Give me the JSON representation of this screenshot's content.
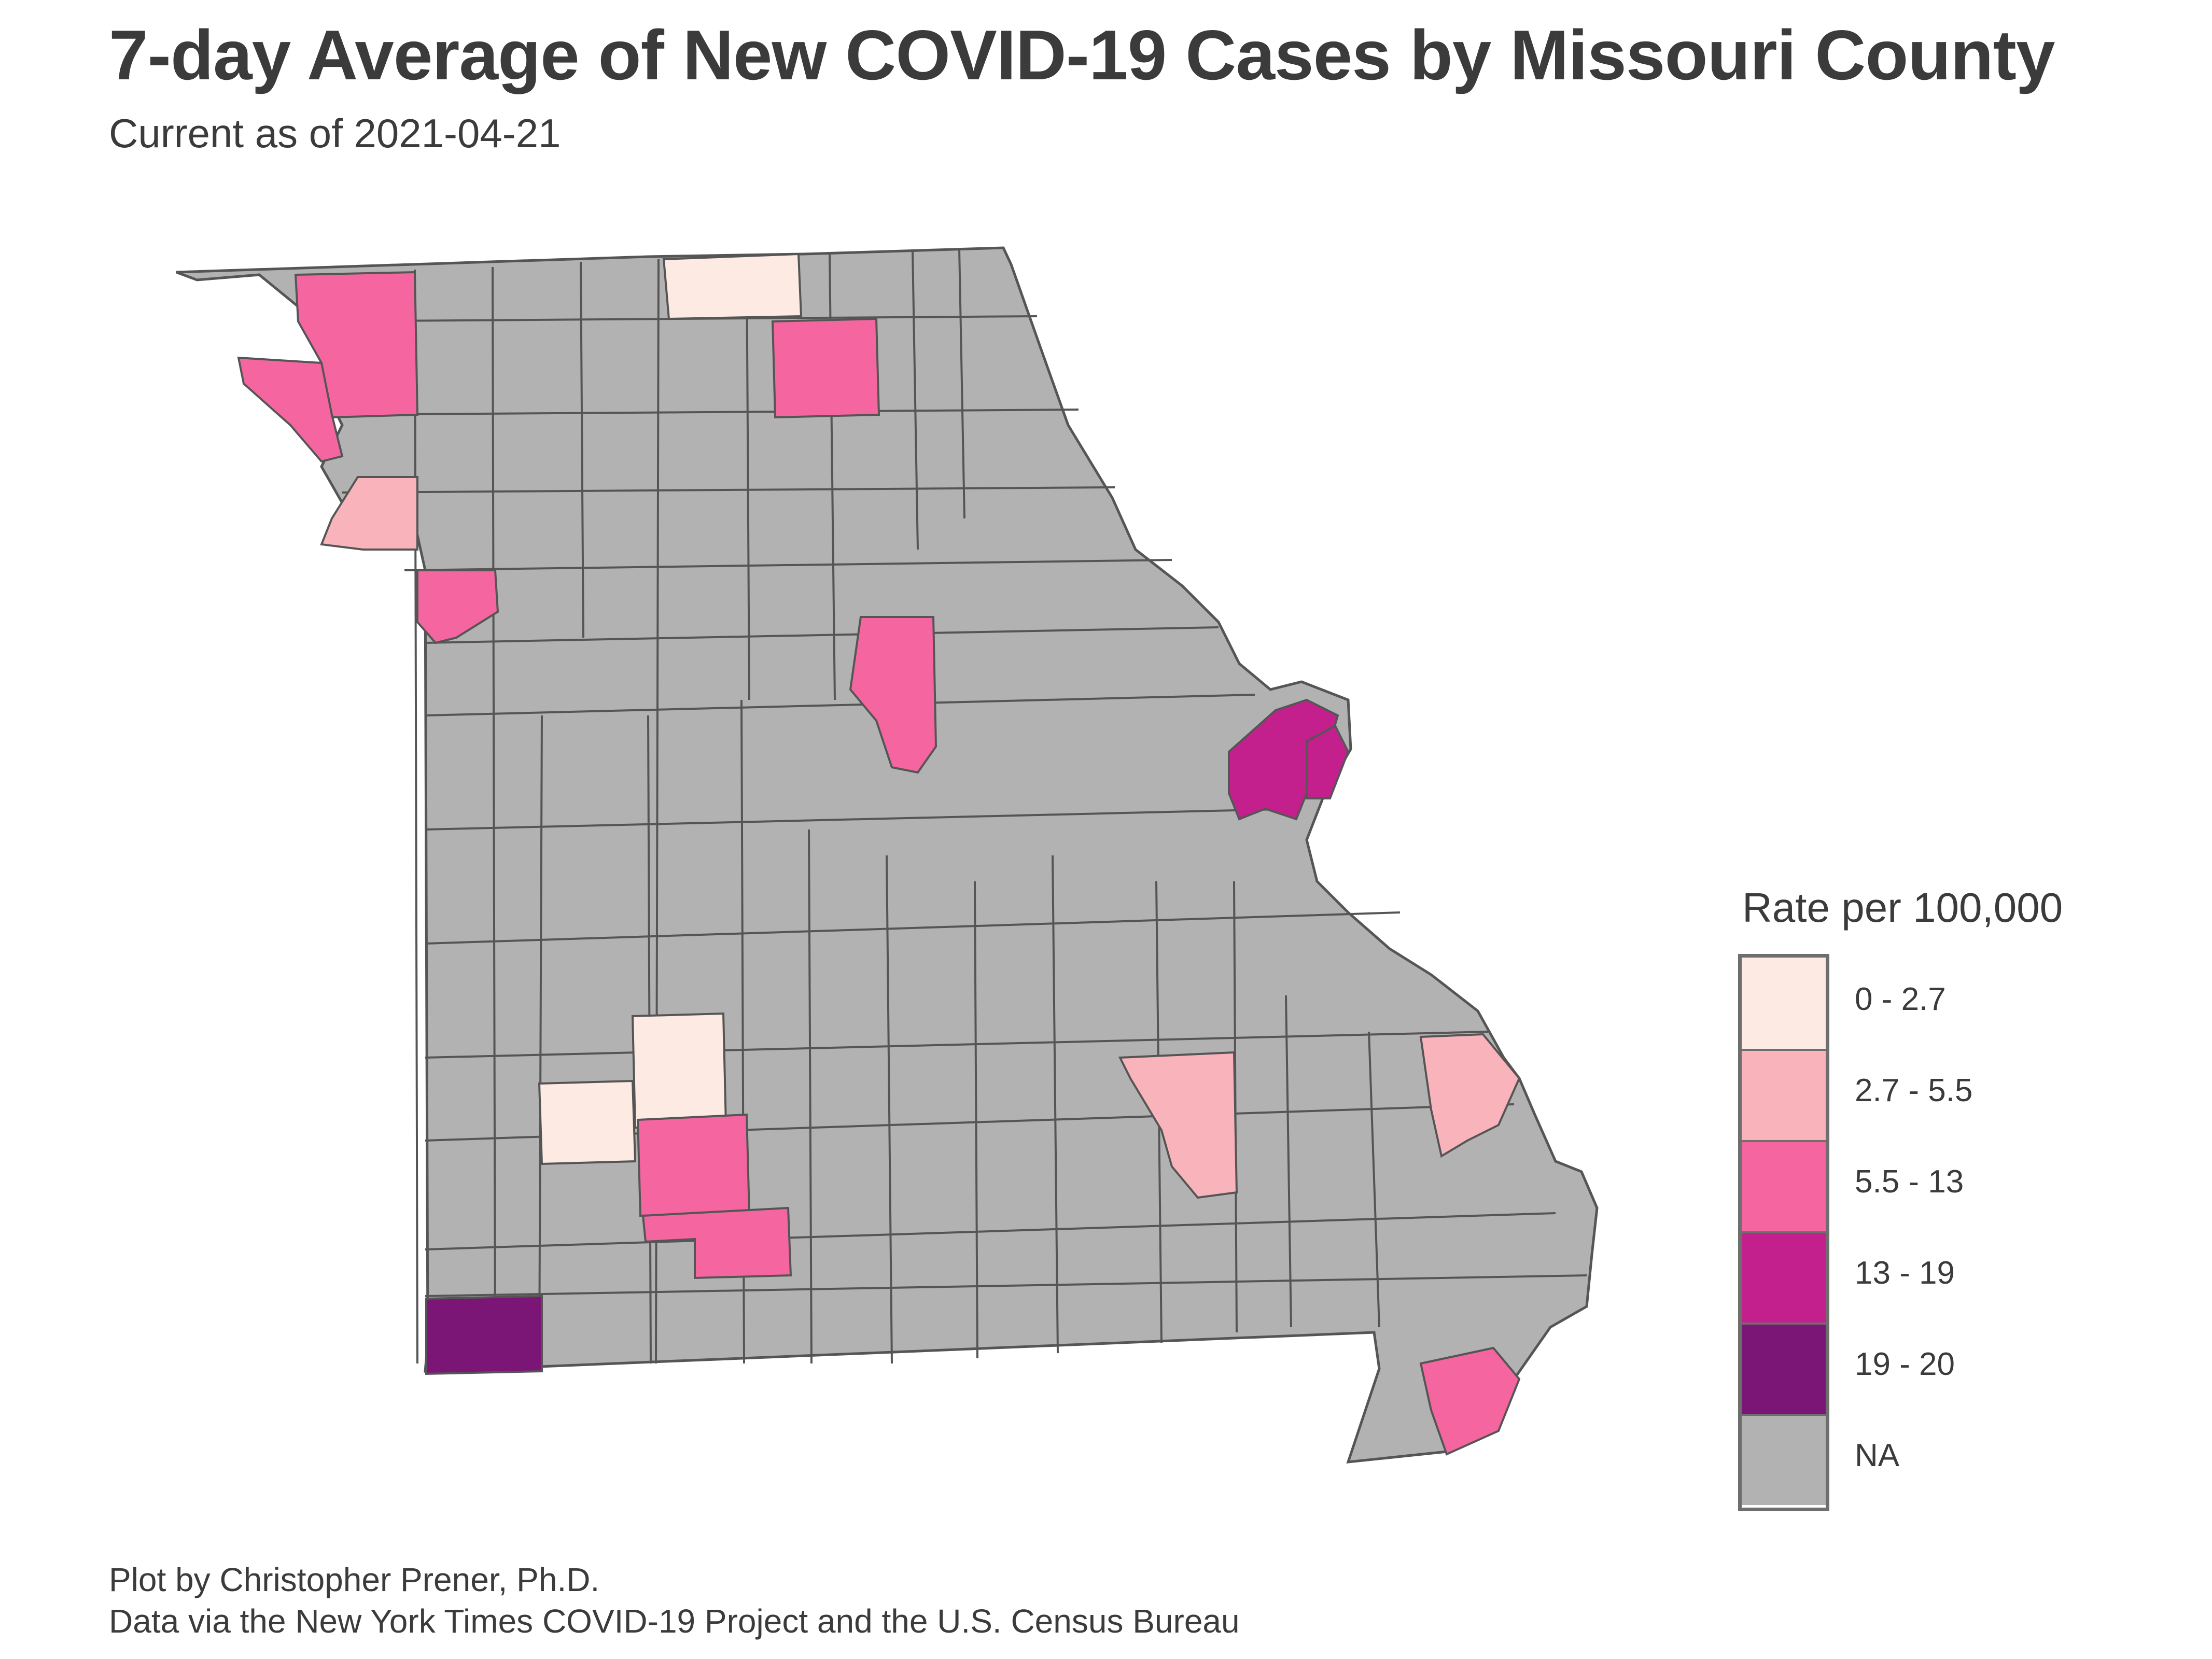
{
  "title": "7-day Average of New COVID-19 Cases by Missouri County",
  "subtitle": "Current as of 2021-04-21",
  "legend": {
    "title": "Rate per 100,000",
    "items": [
      {
        "label": "0 - 2.7",
        "color": "#fdebe3"
      },
      {
        "label": "2.7 - 5.5",
        "color": "#f9b4bb"
      },
      {
        "label": "5.5 - 13",
        "color": "#f566a1"
      },
      {
        "label": "13 - 19",
        "color": "#c3208d"
      },
      {
        "label": "19 - 20",
        "color": "#7b1677"
      },
      {
        "label": "NA",
        "color": "#b2b2b2"
      }
    ]
  },
  "caption": {
    "line1": "Plot by Christopher Prener, Ph.D.",
    "line2": "Data via the New York Times COVID-19 Project and the U.S. Census Bureau"
  },
  "map": {
    "state": "Missouri",
    "na_color": "#b2b2b2",
    "border_color": "#555555"
  }
}
